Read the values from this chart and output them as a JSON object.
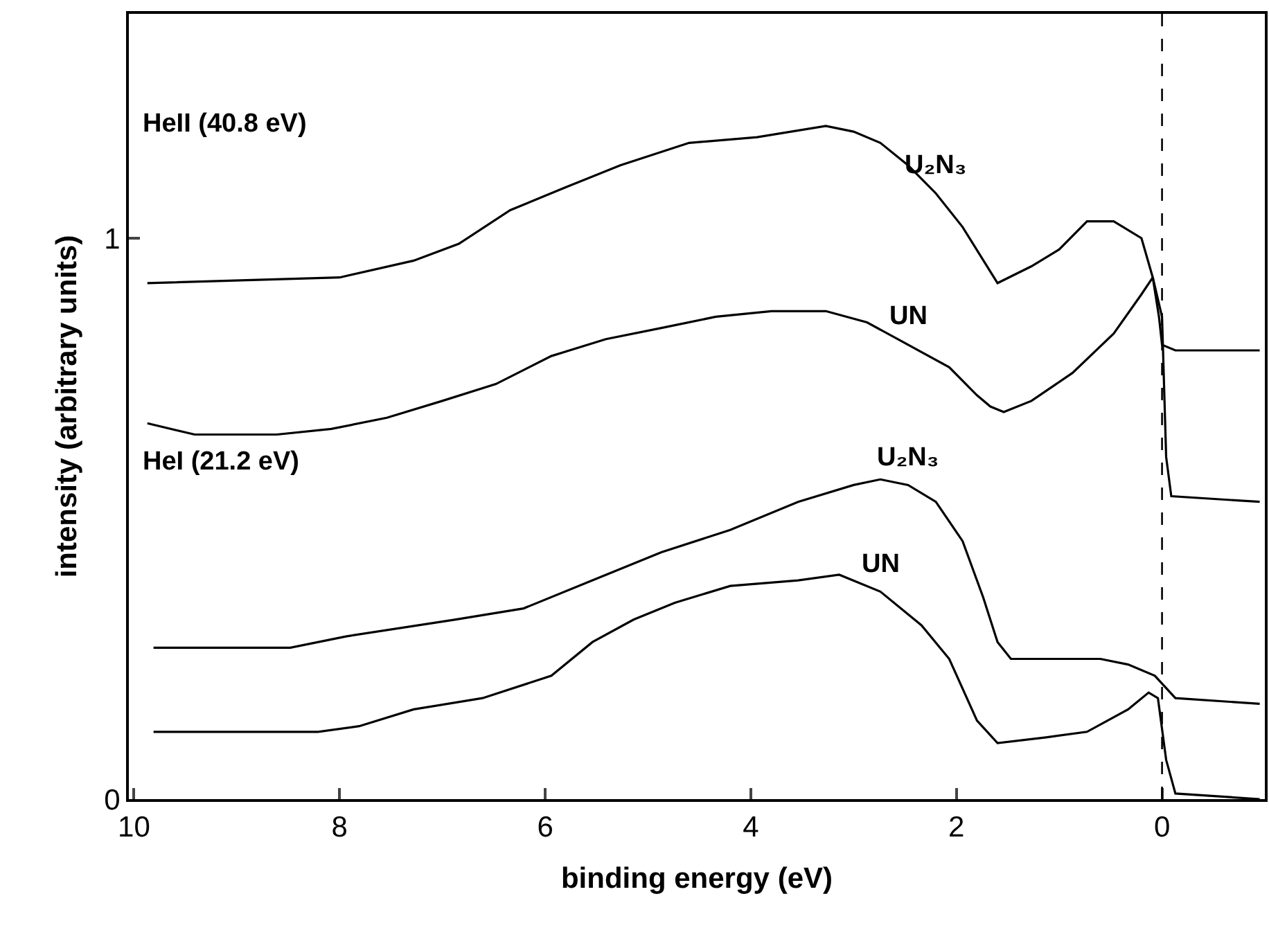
{
  "chart_data": {
    "type": "line",
    "xlabel": "binding energy (eV)",
    "ylabel": "intensity (arbitrary units)",
    "xlim": [
      10.05,
      -1
    ],
    "xticks": [
      10,
      8,
      6,
      4,
      2,
      0
    ],
    "ylim": [
      0,
      1.4
    ],
    "yticks": [
      0,
      1
    ],
    "grid": false,
    "legend": false,
    "marker": "none",
    "line_style": "solid",
    "series": [
      {
        "name": "U₂N₃",
        "color": "#000000",
        "x": [
          9.87,
          8,
          7.28,
          6.84,
          6.34,
          5.81,
          5.27,
          4.6,
          3.94,
          3.27,
          3.0,
          2.74,
          2.47,
          2.2,
          1.94,
          1.6,
          1.27,
          1.0,
          0.73,
          0.47,
          0.2,
          0.09,
          0.03,
          0,
          -0.13,
          -0.95
        ],
        "values": [
          0.92,
          0.93,
          0.96,
          0.99,
          1.05,
          1.09,
          1.13,
          1.17,
          1.18,
          1.2,
          1.19,
          1.17,
          1.13,
          1.08,
          1.02,
          0.92,
          0.95,
          0.98,
          1.03,
          1.03,
          1.0,
          0.93,
          0.86,
          0.81,
          0.8,
          0.8
        ]
      },
      {
        "name": "UN",
        "color": "#000000",
        "x": [
          9.87,
          9.41,
          8.61,
          8.08,
          7.54,
          7.0,
          6.48,
          5.94,
          5.41,
          4.87,
          4.34,
          3.8,
          3.27,
          2.87,
          2.47,
          2.07,
          1.8,
          1.67,
          1.54,
          1.27,
          0.87,
          0.47,
          0.2,
          0.09,
          0,
          -0.04,
          -0.09,
          -0.95
        ],
        "values": [
          0.67,
          0.65,
          0.65,
          0.66,
          0.68,
          0.71,
          0.74,
          0.79,
          0.82,
          0.84,
          0.86,
          0.87,
          0.87,
          0.85,
          0.81,
          0.77,
          0.72,
          0.7,
          0.69,
          0.71,
          0.76,
          0.83,
          0.9,
          0.93,
          0.86,
          0.61,
          0.54,
          0.53
        ]
      },
      {
        "name": "U₂N₃",
        "color": "#000000",
        "x": [
          9.81,
          8.48,
          7.94,
          6.88,
          6.21,
          5.54,
          4.87,
          4.2,
          3.54,
          3.0,
          2.74,
          2.47,
          2.2,
          1.94,
          1.74,
          1.6,
          1.47,
          1.13,
          0.6,
          0.33,
          0.07,
          -0.13,
          -0.95
        ],
        "values": [
          0.27,
          0.27,
          0.29,
          0.32,
          0.34,
          0.39,
          0.44,
          0.48,
          0.53,
          0.56,
          0.57,
          0.56,
          0.53,
          0.46,
          0.36,
          0.28,
          0.25,
          0.25,
          0.25,
          0.24,
          0.22,
          0.18,
          0.17
        ]
      },
      {
        "name": "UN",
        "color": "#000000",
        "x": [
          9.81,
          8.21,
          7.81,
          7.28,
          6.61,
          5.94,
          5.54,
          5.14,
          4.74,
          4.2,
          3.54,
          3.14,
          2.74,
          2.34,
          2.07,
          1.8,
          1.6,
          1.13,
          0.73,
          0.33,
          0.13,
          0.04,
          -0.04,
          -0.13,
          -0.95
        ],
        "values": [
          0.12,
          0.12,
          0.13,
          0.16,
          0.18,
          0.22,
          0.28,
          0.32,
          0.35,
          0.38,
          0.39,
          0.4,
          0.37,
          0.31,
          0.25,
          0.14,
          0.1,
          0.11,
          0.12,
          0.16,
          0.19,
          0.18,
          0.07,
          0.01,
          0
        ]
      }
    ],
    "ref_lines": [
      {
        "axis": "x",
        "value": 0,
        "color": "#000000",
        "line_style": "dashed"
      }
    ],
    "annotations": [
      "HeII (40.8 eV)",
      "HeI (21.2 eV)"
    ]
  }
}
